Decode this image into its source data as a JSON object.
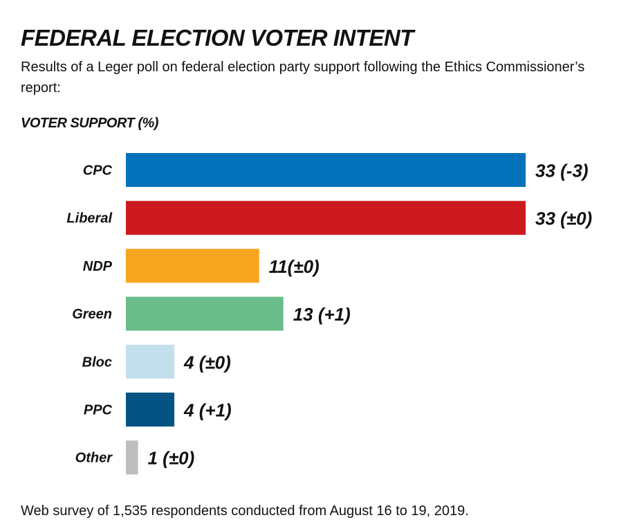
{
  "header": {
    "title": "FEDERAL ELECTION VOTER INTENT",
    "subtitle": "Results of a Leger poll on federal election party support following the Ethics Commissioner’s report:",
    "section_label": "VOTER SUPPORT (%)"
  },
  "footer": {
    "note": "Web survey of 1,535 respondents conducted from August 16 to 19, 2019."
  },
  "chart_data": {
    "type": "bar",
    "orientation": "horizontal",
    "title": "FEDERAL ELECTION VOTER INTENT",
    "subtitle": "Results of a Leger poll on federal election party support following the Ethics Commissioner’s report:",
    "xlabel": "VOTER SUPPORT (%)",
    "ylabel": "",
    "xlim": [
      0,
      33
    ],
    "grid": false,
    "legend": "none",
    "categories": [
      "CPC",
      "Liberal",
      "NDP",
      "Green",
      "Bloc",
      "PPC",
      "Other"
    ],
    "values": [
      33,
      33,
      11,
      13,
      4,
      4,
      1
    ],
    "changes": [
      -3,
      0,
      0,
      1,
      0,
      1,
      0
    ],
    "data_labels": [
      "33 (-3)",
      "33 (±0)",
      "11(±0)",
      "13 (+1)",
      "4 (±0)",
      "4 (+1)",
      "1 (±0)"
    ],
    "colors": [
      "#0372bb",
      "#cd1a21",
      "#f7a41e",
      "#68bd8a",
      "#c3dfec",
      "#045383",
      "#bcbdbf"
    ]
  }
}
